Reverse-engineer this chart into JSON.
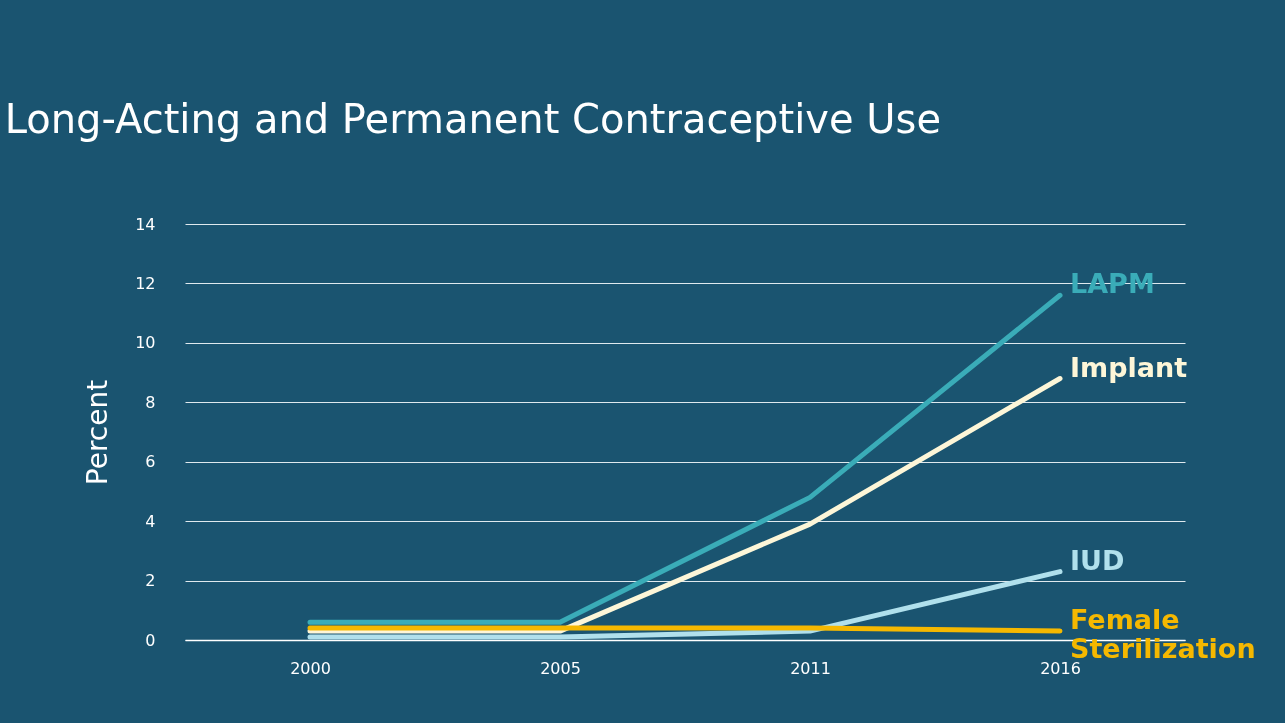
{
  "chart_data": {
    "type": "line",
    "title": "Long-Acting and Permanent Contraceptive Use",
    "ylabel": "Percent",
    "categories": [
      "2000",
      "2005",
      "2011",
      "2016"
    ],
    "series": [
      {
        "name": "LAPM",
        "color": "#3aacb8",
        "values": [
          0.6,
          0.6,
          4.8,
          11.6
        ]
      },
      {
        "name": "Implant",
        "color": "#fdf6d8",
        "values": [
          0.3,
          0.3,
          3.9,
          8.8
        ]
      },
      {
        "name": "IUD",
        "color": "#b0e0ec",
        "values": [
          0.1,
          0.1,
          0.3,
          2.3
        ]
      },
      {
        "name": "Female Sterilization",
        "color": "#f5b800",
        "values": [
          0.4,
          0.4,
          0.4,
          0.3
        ]
      }
    ],
    "ylim": [
      0,
      14
    ],
    "yticks": [
      0,
      2,
      4,
      6,
      8,
      10,
      12,
      14
    ],
    "grid": "y",
    "legend": false,
    "marker": "none",
    "line_style": "solid"
  }
}
